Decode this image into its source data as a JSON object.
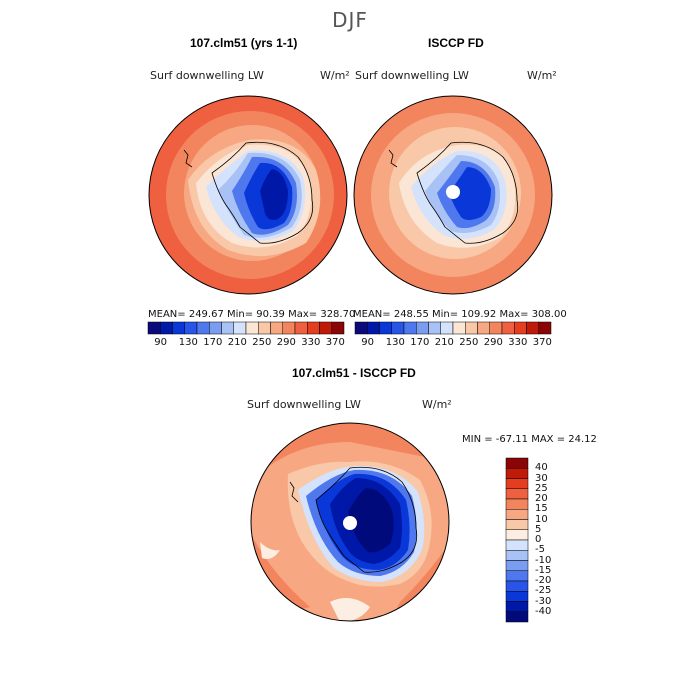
{
  "title": "DJF",
  "panel_left": {
    "heading": "107.clm51 (yrs 1-1)",
    "variable": "Surf downwelling LW",
    "units": "W/m²",
    "stats": "MEAN= 249.67  Min=  90.39  Max= 328.70"
  },
  "panel_right": {
    "heading": "ISCCP FD",
    "variable": "Surf downwelling LW",
    "units": "W/m²",
    "stats": "MEAN= 248.55  Min= 109.92  Max= 308.00"
  },
  "panel_diff": {
    "heading": "107.clm51 - ISCCP FD",
    "variable": "Surf downwelling LW",
    "units": "W/m²",
    "stats": "MIN = -67.11 MAX =  24.12"
  },
  "colorbar_top": {
    "colors": [
      "#0a0a7a",
      "#0018a8",
      "#0a38d8",
      "#2855e8",
      "#4f78ee",
      "#7a9df2",
      "#a8c2f5",
      "#d4e2fb",
      "#fbe6d6",
      "#f9c8a8",
      "#f7a882",
      "#f3855e",
      "#ee6040",
      "#e43d1f",
      "#c01a08",
      "#8a0606"
    ],
    "tick_labels": [
      "90",
      "130",
      "170",
      "210",
      "250",
      "290",
      "330",
      "370"
    ]
  },
  "colorbar_diff": {
    "colors": [
      "#000a7a",
      "#0018a8",
      "#0a38d8",
      "#2855e8",
      "#4f78ee",
      "#7a9df2",
      "#a8c2f5",
      "#d4e2fb",
      "#fdeee4",
      "#f9c8a8",
      "#f7a882",
      "#f3855e",
      "#ee6040",
      "#e43d1f",
      "#c01a08",
      "#8a0606"
    ],
    "tick_labels": [
      "-40",
      "-30",
      "-25",
      "-20",
      "-15",
      "-10",
      "-5",
      "0",
      "5",
      "10",
      "15",
      "20",
      "25",
      "30",
      "40"
    ]
  }
}
